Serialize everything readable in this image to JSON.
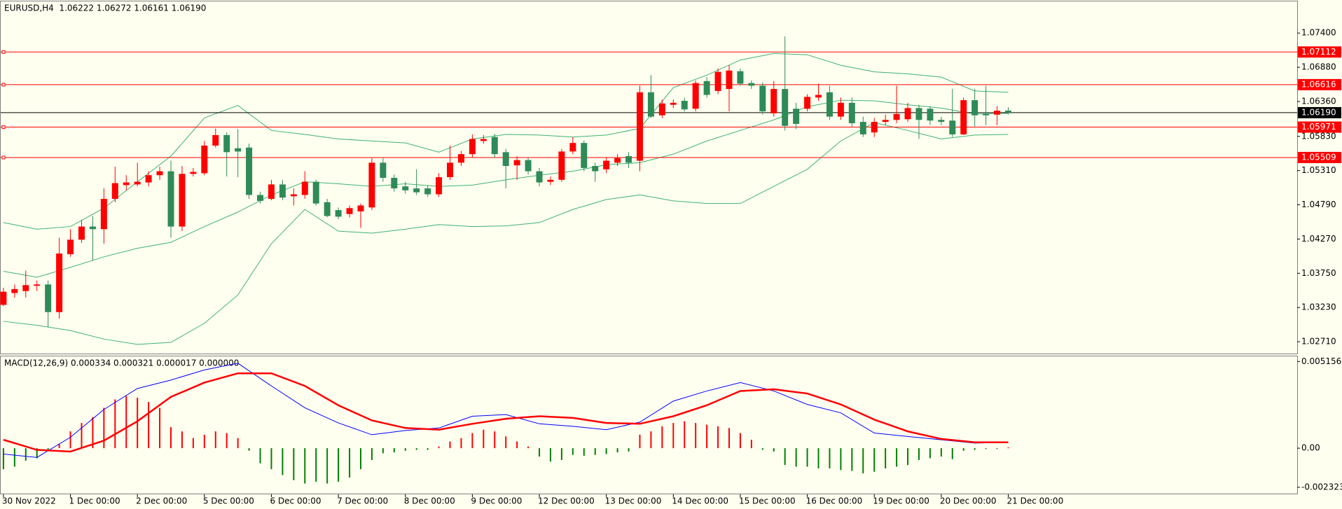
{
  "chart_data": [
    {
      "type": "candlestick",
      "title": "EURUSD,H4  1.06222 1.06272 1.06161 1.06190",
      "categories": [
        "30 Nov 2022",
        null,
        null,
        null,
        null,
        null,
        "1 Dec 00:00",
        null,
        null,
        null,
        null,
        null,
        "2 Dec 00:00",
        null,
        null,
        null,
        null,
        null,
        "5 Dec 00:00",
        null,
        null,
        null,
        null,
        null,
        "6 Dec 00:00",
        null,
        null,
        null,
        null,
        null,
        "7 Dec 00:00",
        null,
        null,
        null,
        null,
        null,
        "8 Dec 00:00",
        null,
        null,
        null,
        null,
        null,
        "9 Dec 00:00",
        null,
        null,
        null,
        null,
        null,
        "12 Dec 00:00",
        null,
        null,
        null,
        null,
        null,
        "13 Dec 00:00",
        null,
        null,
        null,
        null,
        null,
        "14 Dec 00:00",
        null,
        null,
        null,
        null,
        null,
        "15 Dec 00:00",
        null,
        null,
        null,
        null,
        null,
        "16 Dec 00:00",
        null,
        null,
        null,
        null,
        null,
        "19 Dec 00:00",
        null,
        null,
        null,
        null,
        null,
        "20 Dec 00:00",
        null,
        null,
        null,
        null,
        null,
        "21 Dec 00:00"
      ],
      "open": [
        1.0327,
        1.0345,
        1.0348,
        1.0356,
        1.0358,
        1.0316,
        1.0404,
        1.0426,
        1.0446,
        1.0442,
        1.0488,
        1.0509,
        1.051,
        1.0513,
        1.0524,
        1.053,
        1.0446,
        1.0526,
        1.0527,
        1.0569,
        1.0585,
        1.0565,
        1.0566,
        1.0494,
        1.0488,
        1.051,
        1.0492,
        1.0494,
        1.0514,
        1.0483,
        1.0471,
        1.0465,
        1.0469,
        1.0475,
        1.0543,
        1.052,
        1.0507,
        1.0504,
        1.0504,
        1.0495,
        1.0521,
        1.0543,
        1.0556,
        1.0576,
        1.0582,
        1.0559,
        1.0539,
        1.0547,
        1.053,
        1.0514,
        1.0517,
        1.056,
        1.0573,
        1.0538,
        1.0533,
        1.0543,
        1.0553,
        1.0546,
        1.065,
        1.0615,
        1.0631,
        1.0637,
        1.0625,
        1.0667,
        1.0652,
        1.0655,
        1.0682,
        1.0664,
        1.066,
        1.0618,
        1.0655,
        1.0625,
        1.0625,
        1.0642,
        1.065,
        1.0613,
        1.0634,
        1.0605,
        1.0589,
        1.0605,
        1.0608,
        1.0609,
        1.0626,
        1.0625,
        1.0608,
        1.0607,
        1.0586,
        1.0638,
        1.0617,
        1.0616,
        1.06222
      ],
      "high": [
        1.0353,
        1.0358,
        1.0379,
        1.0364,
        1.0364,
        1.0429,
        1.0442,
        1.0455,
        1.0462,
        1.0504,
        1.0537,
        1.0524,
        1.0543,
        1.053,
        1.0537,
        1.0546,
        1.0538,
        1.0535,
        1.0576,
        1.0595,
        1.0589,
        1.0594,
        1.0572,
        1.0499,
        1.0517,
        1.0517,
        1.0504,
        1.053,
        1.0517,
        1.0488,
        1.0475,
        1.0478,
        1.0481,
        1.055,
        1.055,
        1.0525,
        1.0514,
        1.0533,
        1.0509,
        1.0527,
        1.0569,
        1.0561,
        1.0586,
        1.0585,
        1.0587,
        1.0564,
        1.0553,
        1.0551,
        1.0535,
        1.0522,
        1.0564,
        1.0582,
        1.0577,
        1.0543,
        1.0551,
        1.0556,
        1.0559,
        1.066,
        1.0676,
        1.0639,
        1.0639,
        1.0642,
        1.0668,
        1.0673,
        1.0686,
        1.0691,
        1.0686,
        1.0668,
        1.0665,
        1.0667,
        1.0735,
        1.0634,
        1.0647,
        1.0663,
        1.066,
        1.0642,
        1.0642,
        1.0613,
        1.0611,
        1.0616,
        1.066,
        1.0634,
        1.0631,
        1.0629,
        1.0613,
        1.0655,
        1.0642,
        1.0655,
        1.066,
        1.0629,
        1.06272
      ],
      "low": [
        1.0325,
        1.0338,
        1.0338,
        1.0348,
        1.0293,
        1.0306,
        1.04,
        1.0421,
        1.0394,
        1.042,
        1.0483,
        1.0501,
        1.0507,
        1.0507,
        1.0517,
        1.0429,
        1.0439,
        1.0522,
        1.0524,
        1.0566,
        1.0522,
        1.0521,
        1.0488,
        1.0481,
        1.0486,
        1.0486,
        1.0478,
        1.0488,
        1.0478,
        1.046,
        1.0457,
        1.046,
        1.0444,
        1.0471,
        1.0514,
        1.0499,
        1.0496,
        1.0494,
        1.0491,
        1.0491,
        1.0517,
        1.0538,
        1.0551,
        1.0572,
        1.055,
        1.0504,
        1.0517,
        1.0525,
        1.0507,
        1.0509,
        1.0514,
        1.0556,
        1.053,
        1.0514,
        1.0527,
        1.0538,
        1.0535,
        1.053,
        1.0611,
        1.0611,
        1.0626,
        1.0621,
        1.0621,
        1.0642,
        1.0647,
        1.0621,
        1.066,
        1.0655,
        1.0616,
        1.0613,
        1.0592,
        1.0594,
        1.0621,
        1.0637,
        1.0608,
        1.0608,
        1.0598,
        1.0582,
        1.0582,
        1.06,
        1.0603,
        1.0605,
        1.0579,
        1.06,
        1.06,
        1.0582,
        1.0585,
        1.0598,
        1.06,
        1.06,
        1.06161
      ],
      "close": [
        1.0347,
        1.0351,
        1.0357,
        1.0358,
        1.0316,
        1.0405,
        1.0426,
        1.0446,
        1.0442,
        1.0488,
        1.0512,
        1.0513,
        1.0514,
        1.0524,
        1.053,
        1.0446,
        1.0526,
        1.0529,
        1.0569,
        1.0585,
        1.0559,
        1.056,
        1.0494,
        1.0485,
        1.051,
        1.049,
        1.0495,
        1.0514,
        1.0481,
        1.0462,
        1.0461,
        1.0474,
        1.0478,
        1.0543,
        1.052,
        1.0504,
        1.0501,
        1.0498,
        1.0495,
        1.0521,
        1.0543,
        1.0556,
        1.0579,
        1.0579,
        1.0556,
        1.0538,
        1.0547,
        1.053,
        1.0513,
        1.0517,
        1.056,
        1.0573,
        1.0535,
        1.053,
        1.0546,
        1.055,
        1.0543,
        1.065,
        1.0613,
        1.0633,
        1.0634,
        1.0624,
        1.0664,
        1.0646,
        1.0681,
        1.0683,
        1.0663,
        1.066,
        1.0621,
        1.0655,
        1.0599,
        1.0602,
        1.0643,
        1.0646,
        1.0613,
        1.0634,
        1.0603,
        1.0586,
        1.0605,
        1.0608,
        1.0617,
        1.0626,
        1.0608,
        1.0607,
        1.0605,
        1.0586,
        1.0638,
        1.0615,
        1.0615,
        1.0622,
        1.0619
      ],
      "up_color": "#ff0000",
      "down_color": "#2e8b57",
      "bands": {
        "color": "#3cb371",
        "x": [
          0,
          3,
          6,
          9,
          12,
          15,
          18,
          21,
          24,
          27,
          30,
          33,
          36,
          39,
          42,
          45,
          48,
          51,
          54,
          57,
          60,
          63,
          66,
          69,
          72,
          75,
          78,
          81,
          84,
          87,
          90
        ],
        "upper": [
          1.0452,
          1.0442,
          1.0446,
          1.0474,
          1.0514,
          1.0553,
          1.0611,
          1.063,
          1.0592,
          1.0586,
          1.0579,
          1.0576,
          1.0573,
          1.0559,
          1.0579,
          1.0586,
          1.0585,
          1.0582,
          1.0585,
          1.0595,
          1.0657,
          1.0676,
          1.0699,
          1.0709,
          1.0707,
          1.0691,
          1.0681,
          1.0678,
          1.0673,
          1.0652,
          1.065
        ],
        "middle": [
          1.0378,
          1.0369,
          1.0384,
          1.04,
          1.0413,
          1.0422,
          1.0446,
          1.0468,
          1.0494,
          1.0514,
          1.0511,
          1.0507,
          1.0511,
          1.0507,
          1.0509,
          1.0517,
          1.0524,
          1.053,
          1.054,
          1.0543,
          1.0556,
          1.0576,
          1.0592,
          1.0608,
          1.0628,
          1.0638,
          1.0637,
          1.0631,
          1.0626,
          1.0617,
          1.0618
        ],
        "lower": [
          1.0302,
          1.0296,
          1.0288,
          1.0275,
          1.0267,
          1.027,
          1.0299,
          1.0342,
          1.042,
          1.0472,
          1.0439,
          1.0436,
          1.0442,
          1.0449,
          1.0446,
          1.0447,
          1.0452,
          1.0472,
          1.0487,
          1.0494,
          1.0485,
          1.0481,
          1.0481,
          1.0507,
          1.0533,
          1.0576,
          1.0604,
          1.0592,
          1.0579,
          1.0585,
          1.0586
        ]
      },
      "levels": [
        1.07112,
        1.06616,
        1.05971,
        1.05509
      ],
      "level_color": "#ff0000",
      "last_price": {
        "value": 1.0619,
        "label": "1.06190"
      },
      "last_price_color": "#000000",
      "ylim": [
        1.0253,
        1.0787
      ],
      "yticks": [
        {
          "value": 1.074,
          "label": "1.07400"
        },
        {
          "value": 1.0688,
          "label": "1.06880"
        },
        {
          "value": 1.0636,
          "label": "1.06360"
        },
        {
          "value": 1.0583,
          "label": "1.05830"
        },
        {
          "value": 1.0531,
          "label": "1.05310"
        },
        {
          "value": 1.0479,
          "label": "1.04790"
        },
        {
          "value": 1.0427,
          "label": "1.04270"
        },
        {
          "value": 1.0375,
          "label": "1.03750"
        },
        {
          "value": 1.0323,
          "label": "1.03230"
        },
        {
          "value": 1.0271,
          "label": "1.02710"
        }
      ]
    },
    {
      "type": "macd",
      "title": "MACD(12,26,9) 0.000334 0.000321 0.000017 0.000000",
      "histogram": [
        -0.00125,
        -0.0011,
        -0.00075,
        -0.0006,
        -0.00015,
        0.00025,
        0.001,
        0.0015,
        0.00185,
        0.0024,
        0.0029,
        0.0031,
        0.003,
        0.00275,
        0.0024,
        0.00125,
        0.001,
        0.0006,
        0.0008,
        0.001,
        0.0009,
        0.0006,
        -0.00015,
        -0.0009,
        -0.00125,
        -0.0016,
        -0.0019,
        -0.0021,
        -0.002,
        -0.0021,
        -0.002,
        -0.00175,
        -0.00125,
        -0.0007,
        -0.0003,
        -0.00025,
        -0.00015,
        -0.0001,
        -0.0001,
        0.0001,
        0.0004,
        0.0006,
        0.0009,
        0.0011,
        0.001,
        0.0007,
        0.0004,
        0.0001,
        -0.0005,
        -0.0008,
        -0.0007,
        -0.0004,
        -0.00045,
        -0.0004,
        -0.00035,
        -0.00025,
        -0.0002,
        0.0008,
        0.001,
        0.0013,
        0.0015,
        0.0016,
        0.0015,
        0.0014,
        0.0013,
        0.0012,
        0.0009,
        0.0005,
        -0.0001,
        -0.0002,
        -0.001,
        -0.0011,
        -0.0011,
        -0.0012,
        -0.0012,
        -0.0013,
        -0.00135,
        -0.0015,
        -0.0014,
        -0.0012,
        -0.0011,
        -0.001,
        -0.0007,
        -0.0006,
        -0.0005,
        -0.00065,
        -0.00015,
        -0.0001,
        -5e-05,
        -5e-05,
        5e-05
      ],
      "pos_color": "#ff0000",
      "neg_color": "#008000",
      "x": [
        0,
        3,
        6,
        9,
        12,
        15,
        18,
        21,
        24,
        27,
        30,
        33,
        36,
        39,
        42,
        45,
        48,
        51,
        54,
        57,
        60,
        63,
        66,
        69,
        72,
        75,
        78,
        81,
        84,
        87,
        90
      ],
      "macd": [
        -0.00035,
        -0.00055,
        0.00065,
        0.0023,
        0.00355,
        0.00405,
        0.00465,
        0.00505,
        0.0037,
        0.0024,
        0.0015,
        0.0008,
        0.00105,
        0.0012,
        0.0019,
        0.002,
        0.00145,
        0.0013,
        0.0011,
        0.00155,
        0.0028,
        0.0034,
        0.0039,
        0.0034,
        0.0026,
        0.0021,
        0.0009,
        0.0007,
        0.0005,
        0.0003,
        0.00035
      ],
      "signal": [
        0.0005,
        -0.0001,
        -0.0002,
        0.00045,
        0.0016,
        0.00305,
        0.0039,
        0.00445,
        0.00445,
        0.0037,
        0.00255,
        0.00165,
        0.0012,
        0.0011,
        0.00145,
        0.00175,
        0.0019,
        0.0018,
        0.0015,
        0.00145,
        0.0019,
        0.00255,
        0.0034,
        0.0035,
        0.00325,
        0.0026,
        0.0017,
        0.001,
        0.00055,
        0.00035,
        0.00035
      ],
      "macd_color": "#0000ff",
      "signal_color": "#ff0000",
      "ylim": [
        -0.0027,
        0.0055
      ],
      "yticks": [
        0.005156,
        {
          "value": 0,
          "label": "0.00"
        },
        -0.002323
      ]
    }
  ]
}
